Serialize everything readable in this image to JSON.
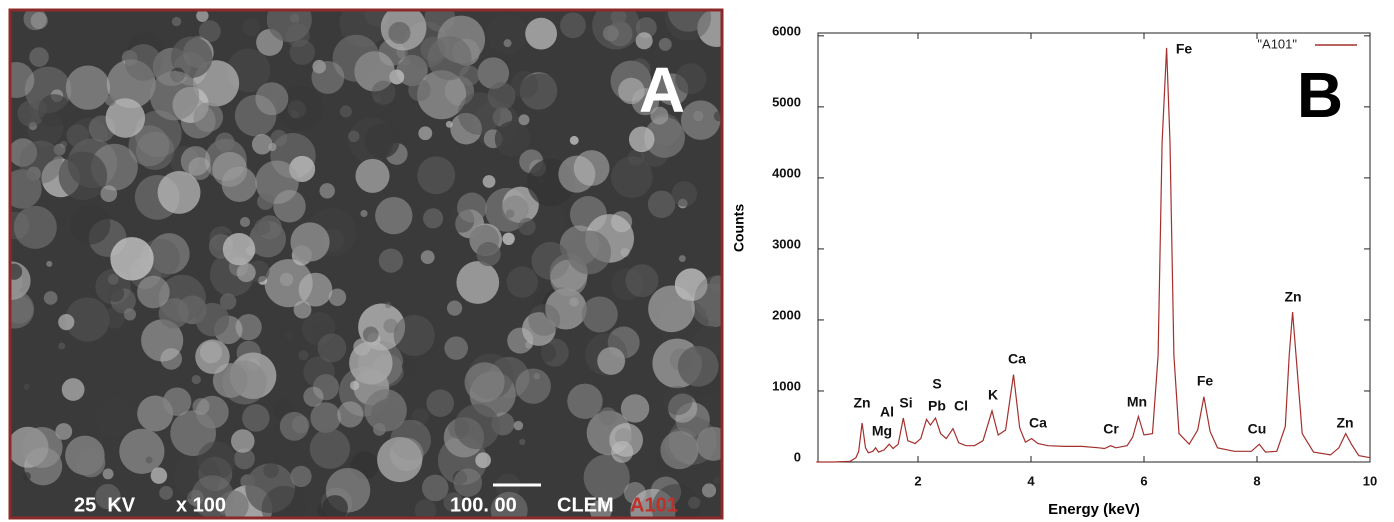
{
  "panel_a": {
    "letter": "A",
    "voltage": "25  KV",
    "magnification": "x 100",
    "scale": "100. 00",
    "lab": "CLEM",
    "sample": "A101"
  },
  "chart_data": {
    "type": "line",
    "panel_letter": "B",
    "x_label": "Energy (keV)",
    "y_label": "Counts",
    "xlim": [
      0.23,
      10
    ],
    "ylim": [
      0,
      6040
    ],
    "xticks": [
      2,
      4,
      6,
      8,
      10
    ],
    "yticks": [
      0,
      1000,
      2000,
      3000,
      4000,
      5000,
      6000
    ],
    "legend": "upper right",
    "x": [
      0.2,
      0.5,
      0.8,
      0.9,
      0.95,
      1.01,
      1.07,
      1.12,
      1.2,
      1.25,
      1.3,
      1.4,
      1.49,
      1.56,
      1.65,
      1.74,
      1.82,
      1.95,
      2.05,
      2.15,
      2.22,
      2.31,
      2.4,
      2.5,
      2.62,
      2.72,
      2.85,
      3.0,
      3.15,
      3.31,
      3.42,
      3.55,
      3.69,
      3.8,
      3.9,
      4.01,
      4.12,
      4.3,
      4.6,
      4.9,
      5.2,
      5.3,
      5.41,
      5.5,
      5.7,
      5.8,
      5.9,
      6.0,
      6.15,
      6.25,
      6.32,
      6.4,
      6.46,
      6.53,
      6.62,
      6.8,
      6.95,
      7.06,
      7.17,
      7.3,
      7.6,
      7.9,
      8.04,
      8.15,
      8.35,
      8.5,
      8.57,
      8.63,
      8.7,
      8.8,
      9.0,
      9.3,
      9.45,
      9.57,
      9.67,
      9.8,
      10.0
    ],
    "series": [
      {
        "name": "\"A101\"",
        "color": "#a3302e",
        "values": [
          0,
          0,
          10,
          60,
          150,
          550,
          200,
          130,
          150,
          200,
          140,
          170,
          250,
          190,
          250,
          620,
          300,
          260,
          330,
          600,
          520,
          620,
          400,
          330,
          470,
          270,
          230,
          230,
          300,
          720,
          380,
          450,
          1230,
          480,
          280,
          330,
          260,
          230,
          220,
          220,
          200,
          190,
          230,
          200,
          230,
          350,
          640,
          380,
          400,
          1500,
          4500,
          5830,
          4500,
          1500,
          400,
          250,
          450,
          920,
          430,
          200,
          150,
          150,
          250,
          140,
          150,
          500,
          1500,
          2110,
          1400,
          400,
          140,
          100,
          200,
          400,
          250,
          90,
          60
        ]
      }
    ],
    "annotations": [
      "Zn",
      "Mg",
      "Al",
      "Si",
      "S",
      "Pb",
      "Cl",
      "K",
      "Ca",
      "Ca",
      "Cr",
      "Mn",
      "Fe",
      "Fe",
      "Cu",
      "Zn",
      "Zn"
    ]
  }
}
